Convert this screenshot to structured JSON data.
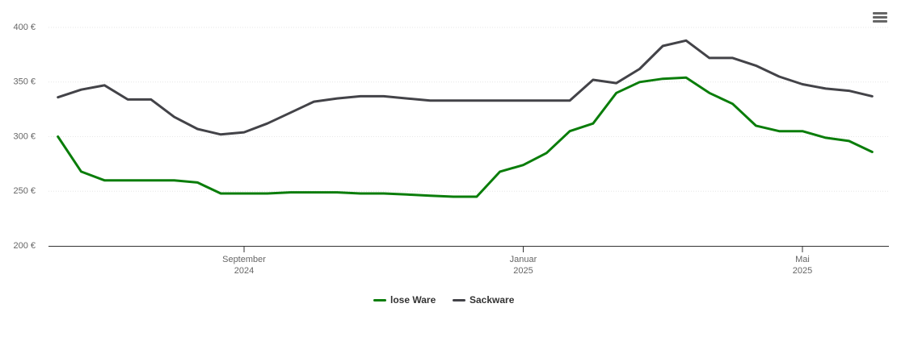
{
  "chart_data": {
    "type": "line",
    "categories": [
      null,
      null,
      null,
      null,
      null,
      null,
      null,
      null,
      "September\n2024",
      null,
      null,
      null,
      null,
      null,
      null,
      null,
      null,
      null,
      null,
      null,
      "Januar\n2025",
      null,
      null,
      null,
      null,
      null,
      null,
      null,
      null,
      null,
      null,
      null,
      "Mai\n2025",
      null,
      null,
      null
    ],
    "series": [
      {
        "name": "lose Ware",
        "color": "#0a7d0a",
        "values": [
          300,
          268,
          260,
          260,
          260,
          260,
          258,
          248,
          248,
          248,
          249,
          249,
          249,
          248,
          248,
          247,
          246,
          245,
          245,
          268,
          274,
          285,
          305,
          312,
          340,
          350,
          353,
          354,
          340,
          330,
          310,
          305,
          305,
          299,
          296,
          286
        ]
      },
      {
        "name": "Sackware",
        "color": "#434348",
        "values": [
          336,
          343,
          347,
          334,
          334,
          318,
          307,
          302,
          304,
          312,
          322,
          332,
          335,
          337,
          337,
          335,
          333,
          333,
          333,
          333,
          333,
          333,
          333,
          352,
          349,
          362,
          383,
          388,
          372,
          372,
          365,
          355,
          348,
          344,
          342,
          337
        ]
      }
    ],
    "ylim": [
      200,
      400
    ],
    "yticks": [
      {
        "value": 200,
        "label": "200 €"
      },
      {
        "value": 250,
        "label": "250 €"
      },
      {
        "value": 300,
        "label": "300 €"
      },
      {
        "value": 350,
        "label": "350 €"
      },
      {
        "value": 400,
        "label": "400 €"
      }
    ],
    "grid": true,
    "legend": "bottom"
  }
}
